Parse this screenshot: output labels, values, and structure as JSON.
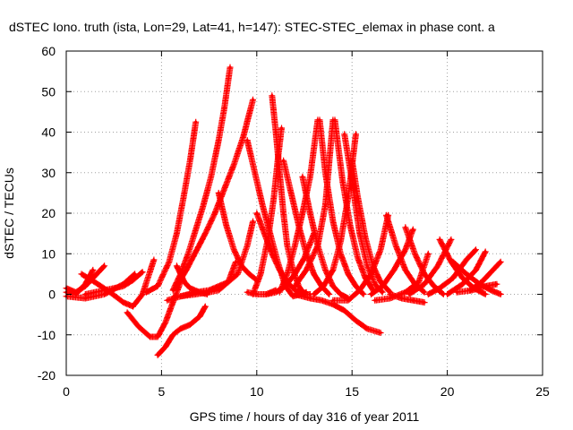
{
  "chart_data": {
    "type": "scatter",
    "title": "dSTEC Iono. truth (ista, Lon=29, Lat=41, h=147): STEC-STEC_elemax in phase cont. a",
    "xlabel": "GPS time / hours of day 316 of year 2011",
    "ylabel": "dSTEC  / TECUs",
    "xlim": [
      0,
      25
    ],
    "ylim": [
      -20,
      60
    ],
    "xticks": [
      0,
      5,
      10,
      15,
      20,
      25
    ],
    "yticks": [
      -20,
      -10,
      0,
      10,
      20,
      30,
      40,
      50,
      60
    ],
    "grid": true,
    "marker": "+",
    "series_color": "#ff0000",
    "series": [
      {
        "x": [
          0.0,
          0.5,
          1.0,
          1.5,
          2.0
        ],
        "y": [
          1.5,
          0.5,
          2.0,
          4.5,
          7.0
        ]
      },
      {
        "x": [
          0.0,
          0.5,
          1.0,
          1.4
        ],
        "y": [
          0.5,
          0.0,
          2.5,
          6.0
        ]
      },
      {
        "x": [
          0.0,
          1.0,
          2.0,
          3.0,
          3.6
        ],
        "y": [
          -0.5,
          -1.0,
          0.0,
          2.5,
          5.0
        ]
      },
      {
        "x": [
          0.8,
          1.5,
          2.3,
          3.0,
          3.5,
          4.0,
          4.6
        ],
        "y": [
          5.0,
          3.0,
          0.5,
          -2.0,
          -3.0,
          0.0,
          8.5
        ]
      },
      {
        "x": [
          1.0,
          2.0,
          3.0,
          3.5,
          4.0
        ],
        "y": [
          0.0,
          1.0,
          2.0,
          3.5,
          5.5
        ]
      },
      {
        "x": [
          3.2,
          3.8,
          4.4,
          4.8,
          5.2,
          5.6,
          6.0
        ],
        "y": [
          -4.5,
          -8.0,
          -10.5,
          -10.5,
          -7.0,
          -2.0,
          3.0
        ]
      },
      {
        "x": [
          4.8,
          5.2,
          5.6,
          6.0,
          6.5,
          7.0,
          7.3
        ],
        "y": [
          -15.0,
          -13.0,
          -10.0,
          -8.5,
          -7.5,
          -5.5,
          -3.0
        ]
      },
      {
        "x": [
          4.2,
          4.8,
          5.4,
          5.8,
          6.2,
          6.5,
          6.8
        ],
        "y": [
          0.5,
          2.0,
          8.0,
          15.0,
          25.0,
          33.0,
          42.5
        ]
      },
      {
        "x": [
          5.6,
          6.0,
          6.4,
          6.8,
          7.2,
          7.6,
          8.0,
          8.3,
          8.6
        ],
        "y": [
          1.0,
          5.0,
          10.0,
          16.0,
          22.0,
          29.0,
          38.0,
          46.0,
          56.0
        ]
      },
      {
        "x": [
          5.8,
          6.3,
          6.8,
          7.3,
          7.8,
          8.3,
          8.8,
          9.3,
          9.8
        ],
        "y": [
          2.0,
          6.0,
          10.5,
          15.0,
          20.0,
          26.0,
          32.0,
          39.0,
          48.0
        ]
      },
      {
        "x": [
          5.3,
          6.0,
          6.8,
          7.5,
          8.0,
          8.5,
          8.9
        ],
        "y": [
          -1.5,
          -0.5,
          0.0,
          0.5,
          1.0,
          3.0,
          8.0
        ]
      },
      {
        "x": [
          5.8,
          6.0,
          6.2,
          6.5,
          7.0,
          7.4
        ],
        "y": [
          7.0,
          5.0,
          3.0,
          1.5,
          0.5,
          0.0
        ]
      },
      {
        "x": [
          6.0,
          6.8,
          7.5,
          8.0,
          8.5,
          9.0,
          9.5,
          9.8
        ],
        "y": [
          -0.5,
          0.5,
          1.0,
          2.0,
          3.0,
          5.0,
          12.0,
          18.0
        ]
      },
      {
        "x": [
          8.0,
          8.4,
          8.8,
          9.2,
          9.6,
          10.0
        ],
        "y": [
          25.0,
          17.0,
          11.0,
          7.0,
          5.0,
          3.5
        ]
      },
      {
        "x": [
          9.5,
          10.0,
          10.5,
          11.0
        ],
        "y": [
          0.5,
          0.0,
          0.0,
          1.0
        ]
      },
      {
        "x": [
          9.5,
          9.9,
          10.3,
          10.7,
          11.1,
          11.5,
          11.9,
          12.3,
          12.6
        ],
        "y": [
          38.0,
          30.0,
          22.0,
          15.0,
          8.0,
          2.0,
          -0.5,
          0.0,
          0.5
        ]
      },
      {
        "x": [
          10.0,
          10.4,
          10.8,
          11.2,
          11.6,
          12.0,
          12.4,
          12.8
        ],
        "y": [
          20.0,
          15.0,
          10.0,
          6.0,
          3.0,
          1.0,
          0.0,
          0.0
        ]
      },
      {
        "x": [
          10.8,
          11.0,
          11.2,
          11.4,
          11.6,
          11.9,
          12.2,
          12.5
        ],
        "y": [
          49.0,
          40.0,
          30.0,
          20.0,
          12.0,
          6.0,
          2.0,
          0.0
        ]
      },
      {
        "x": [
          9.8,
          10.2,
          10.6,
          10.9,
          11.1,
          11.3
        ],
        "y": [
          0.0,
          5.0,
          14.0,
          24.0,
          33.0,
          41.0
        ]
      },
      {
        "x": [
          11.2,
          11.6,
          12.0,
          12.4,
          12.8,
          13.2
        ],
        "y": [
          0.5,
          5.0,
          12.0,
          20.0,
          29.0,
          43.0
        ]
      },
      {
        "x": [
          10.5,
          11.0,
          11.5,
          12.0,
          12.5,
          13.0
        ],
        "y": [
          0.0,
          0.5,
          2.0,
          5.0,
          9.0,
          15.0
        ]
      },
      {
        "x": [
          11.4,
          11.8,
          12.2,
          12.6,
          13.0,
          13.4,
          13.8
        ],
        "y": [
          33.0,
          25.0,
          17.0,
          10.0,
          5.0,
          2.0,
          0.0
        ]
      },
      {
        "x": [
          12.4,
          12.8,
          13.2,
          13.6,
          14.0,
          14.4,
          14.8
        ],
        "y": [
          29.0,
          20.0,
          12.0,
          6.0,
          2.0,
          0.0,
          -1.0
        ]
      },
      {
        "x": [
          12.0,
          12.6,
          13.2,
          13.6,
          14.0
        ],
        "y": [
          2.0,
          6.0,
          12.0,
          22.0,
          43.0
        ]
      },
      {
        "x": [
          13.3,
          13.6,
          14.0,
          14.4,
          14.8,
          15.2,
          15.6
        ],
        "y": [
          43.0,
          30.0,
          18.0,
          10.0,
          5.0,
          2.0,
          0.0
        ]
      },
      {
        "x": [
          14.1,
          14.5,
          14.9,
          15.3,
          15.7,
          16.1
        ],
        "y": [
          43.0,
          28.0,
          17.0,
          9.0,
          4.0,
          1.0
        ]
      },
      {
        "x": [
          12.0,
          12.8,
          13.4,
          14.0,
          14.6,
          15.2,
          15.8,
          16.5
        ],
        "y": [
          0.0,
          -1.0,
          -1.5,
          -2.5,
          -4.0,
          -6.5,
          -8.5,
          -9.5
        ]
      },
      {
        "x": [
          13.0,
          13.5,
          14.0,
          14.4,
          14.8,
          15.2
        ],
        "y": [
          0.0,
          2.0,
          6.0,
          13.0,
          24.0,
          39.5
        ]
      },
      {
        "x": [
          14.6,
          15.0,
          15.4,
          15.8,
          16.2,
          16.6
        ],
        "y": [
          39.5,
          28.0,
          15.0,
          7.0,
          2.5,
          0.5
        ]
      },
      {
        "x": [
          15.0,
          15.3,
          15.7,
          16.1,
          16.5,
          17.0
        ],
        "y": [
          33.0,
          24.0,
          14.0,
          7.0,
          3.0,
          0.5
        ]
      },
      {
        "x": [
          14.0,
          14.8,
          15.4,
          16.0,
          16.5,
          16.9
        ],
        "y": [
          -1.5,
          -1.5,
          1.0,
          5.0,
          11.0,
          19.5
        ]
      },
      {
        "x": [
          16.8,
          17.3,
          17.8,
          18.3,
          18.8
        ],
        "y": [
          19.5,
          12.0,
          6.0,
          2.5,
          0.5
        ]
      },
      {
        "x": [
          16.0,
          16.6,
          17.2,
          17.8,
          18.2
        ],
        "y": [
          0.0,
          2.0,
          6.0,
          11.0,
          16.0
        ]
      },
      {
        "x": [
          17.8,
          18.3,
          18.8,
          19.3,
          19.8
        ],
        "y": [
          16.5,
          10.0,
          5.0,
          2.0,
          0.0
        ]
      },
      {
        "x": [
          16.2,
          17.0,
          17.8,
          18.5,
          19.0
        ],
        "y": [
          -1.5,
          -1.0,
          0.5,
          3.0,
          10.0
        ]
      },
      {
        "x": [
          17.0,
          17.6,
          18.2,
          18.8
        ],
        "y": [
          0.0,
          -1.0,
          -1.5,
          -2.0
        ]
      },
      {
        "x": [
          18.0,
          18.8,
          19.5,
          20.2
        ],
        "y": [
          0.0,
          2.5,
          7.0,
          13.5
        ]
      },
      {
        "x": [
          19.6,
          20.2,
          20.8,
          21.4,
          22.0
        ],
        "y": [
          13.5,
          8.0,
          4.0,
          1.5,
          0.0
        ]
      },
      {
        "x": [
          19.0,
          19.6,
          20.3,
          21.0,
          21.5
        ],
        "y": [
          0.0,
          1.5,
          4.0,
          8.5,
          11.0
        ]
      },
      {
        "x": [
          20.3,
          21.0,
          21.7,
          22.3,
          22.8
        ],
        "y": [
          8.0,
          5.0,
          2.5,
          1.0,
          0.0
        ]
      },
      {
        "x": [
          20.0,
          20.8,
          21.5,
          22.0
        ],
        "y": [
          0.0,
          2.5,
          6.0,
          10.5
        ]
      },
      {
        "x": [
          21.2,
          21.8,
          22.3,
          22.8
        ],
        "y": [
          1.0,
          3.0,
          5.5,
          8.0
        ]
      },
      {
        "x": [
          20.5,
          21.3,
          22.0,
          22.6
        ],
        "y": [
          0.5,
          1.0,
          2.0,
          2.5
        ]
      }
    ]
  }
}
